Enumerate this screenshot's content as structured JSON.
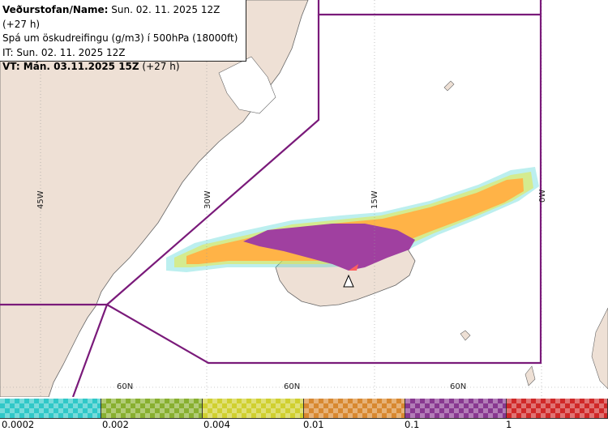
{
  "header": {
    "line1_bold": "Veðurstofan/Name:",
    "line1_rest": " Sun. 02. 11. 2025 12Z (+27 h)",
    "line2": "Spá um öskudreifingu (g/m3) í 500hPa (18000ft)",
    "line3": "IT: Sun. 02. 11. 2025 12Z",
    "line4_bold": "VT: Mán. 03.11.2025 15Z",
    "line4_rest": " (+27 h)"
  },
  "map": {
    "colors": {
      "land": "#eee0d5",
      "coast": "#666666",
      "boundary": "#7a1a7a",
      "ash_orange": "#ffb347",
      "ash_purple": "#a040a0",
      "ash_yellow": "#e8e840",
      "ash_cyan": "#40d0d0"
    },
    "lon_labels": [
      "45W",
      "30W",
      "15W",
      "0W"
    ],
    "lat_labels": [
      "60N",
      "60N",
      "60N"
    ],
    "volcano_icon": "volcano-triangle-icon"
  },
  "legend": {
    "colors": [
      "#30c8c8",
      "#88b030",
      "#d0d030",
      "#d88830",
      "#883890",
      "#d02828"
    ],
    "ticks": [
      "0.0002",
      "0.002",
      "0.004",
      "0.01",
      "0.1",
      "1"
    ]
  }
}
